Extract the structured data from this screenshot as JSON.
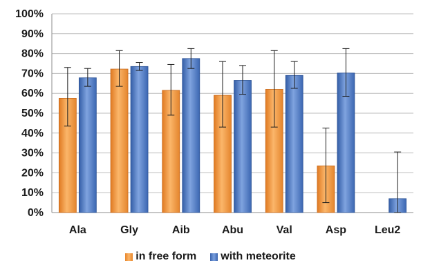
{
  "chart_data": {
    "type": "bar",
    "categories": [
      "Ala",
      "Gly",
      "Aib",
      "Abu",
      "Val",
      "Asp",
      "Leu2"
    ],
    "ylim": [
      0,
      100
    ],
    "yticks": [
      "0%",
      "10%",
      "20%",
      "30%",
      "40%",
      "50%",
      "60%",
      "70%",
      "80%",
      "90%",
      "100%"
    ],
    "grid": true,
    "legend_position": "bottom",
    "series": [
      {
        "name": "in free form",
        "color": "#f59a3e",
        "values": [
          57.5,
          72.2,
          61.5,
          59.0,
          62.0,
          23.5,
          null
        ],
        "err_high": [
          73,
          81.5,
          74.5,
          76,
          81.5,
          42.5,
          null
        ],
        "err_low": [
          43.5,
          63.5,
          49,
          43,
          43,
          5,
          null
        ]
      },
      {
        "name": "with meteorite",
        "color": "#4a77c2",
        "values": [
          67.8,
          73.5,
          77.5,
          66.5,
          69.0,
          70.2,
          7.0
        ],
        "err_high": [
          72.5,
          75.5,
          82.5,
          74,
          76,
          82.5,
          30.5
        ],
        "err_low": [
          63.5,
          71.5,
          72.5,
          59.5,
          62.5,
          58.5,
          0
        ]
      }
    ]
  }
}
